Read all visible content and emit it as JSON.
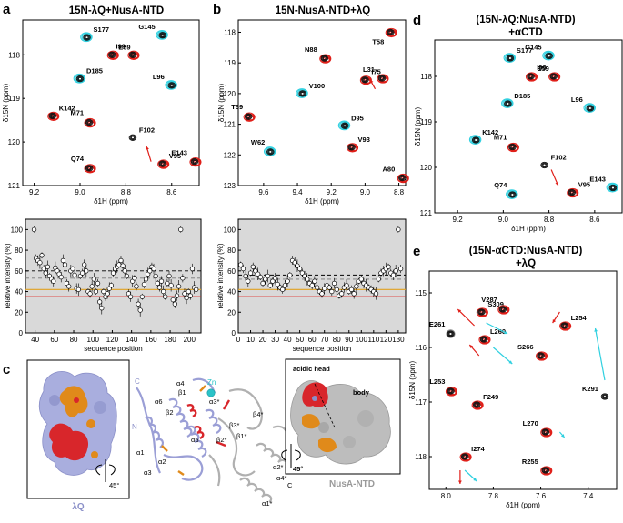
{
  "panels": {
    "a": {
      "letter": "a",
      "title": "15N-λQ+NusA-NTD"
    },
    "b": {
      "letter": "b",
      "title": "15N-NusA-NTD+λQ"
    },
    "c": {
      "letter": "c"
    },
    "d": {
      "letter": "d",
      "title_line1": "(15N-λQ:NusA-NTD)",
      "title_line2": "+αCTD"
    },
    "e": {
      "letter": "e",
      "title_line1": "(15N-αCTD:NusA-NTD)",
      "title_line2": "+λQ"
    }
  },
  "axis_labels": {
    "h_ppm": "δ1H (ppm)",
    "n_ppm": "δ15N (ppm)",
    "rel_intensity": "relative intensity (%)",
    "seq_position": "sequence position"
  },
  "chart_data": [
    {
      "id": "a-spectrum",
      "type": "scatter",
      "title": "15N-λQ+NusA-NTD",
      "xlabel": "δ1H (ppm)",
      "ylabel": "δ15N (ppm)",
      "xlim": [
        9.25,
        8.48
      ],
      "ylim": [
        121.0,
        117.2
      ],
      "xticks": [
        9.2,
        9.0,
        8.8,
        8.6
      ],
      "yticks": [
        118,
        119,
        120,
        121
      ],
      "peaks": [
        {
          "label": "S177",
          "x": 8.97,
          "y": 117.6,
          "style": "cyan"
        },
        {
          "label": "G145",
          "x": 8.64,
          "y": 117.55,
          "style": "cyan"
        },
        {
          "label": "E59",
          "x": 8.86,
          "y": 118.0,
          "style": "red"
        },
        {
          "label": "I99",
          "x": 8.77,
          "y": 118.0,
          "style": "red"
        },
        {
          "label": "D185",
          "x": 9.0,
          "y": 118.55,
          "style": "cyan"
        },
        {
          "label": "L96",
          "x": 8.6,
          "y": 118.7,
          "style": "cyan"
        },
        {
          "label": "K142",
          "x": 9.12,
          "y": 119.4,
          "style": "red"
        },
        {
          "label": "M71",
          "x": 8.96,
          "y": 119.55,
          "style": "red"
        },
        {
          "label": "F102",
          "x": 8.77,
          "y": 119.9,
          "style": "black"
        },
        {
          "label": "Q74",
          "x": 8.96,
          "y": 120.6,
          "style": "red"
        },
        {
          "label": "V95",
          "x": 8.64,
          "y": 120.5,
          "style": "red"
        },
        {
          "label": "E143",
          "x": 8.5,
          "y": 120.45,
          "style": "red"
        }
      ],
      "arrows": [
        {
          "from": [
            8.69,
            120.45
          ],
          "to": [
            8.71,
            120.1
          ]
        }
      ]
    },
    {
      "id": "b-spectrum",
      "type": "scatter",
      "title": "15N-NusA-NTD+λQ",
      "xlabel": "δ1H (ppm)",
      "ylabel": "δ15N (ppm)",
      "xlim": [
        9.75,
        8.76
      ],
      "ylim": [
        123.0,
        117.6
      ],
      "xticks": [
        9.6,
        9.4,
        9.2,
        9.0,
        8.8
      ],
      "yticks": [
        118,
        119,
        120,
        121,
        122,
        123
      ],
      "peaks": [
        {
          "label": "T58",
          "x": 8.85,
          "y": 118.0,
          "style": "red"
        },
        {
          "label": "N88",
          "x": 9.24,
          "y": 118.85,
          "style": "red"
        },
        {
          "label": "I75",
          "x": 9.0,
          "y": 119.55,
          "style": "red"
        },
        {
          "label": "L31",
          "x": 8.9,
          "y": 119.5,
          "style": "red"
        },
        {
          "label": "V100",
          "x": 9.37,
          "y": 120.0,
          "style": "cyan"
        },
        {
          "label": "T69",
          "x": 9.69,
          "y": 120.75,
          "style": "red"
        },
        {
          "label": "D95",
          "x": 9.12,
          "y": 121.05,
          "style": "cyan"
        },
        {
          "label": "W62",
          "x": 9.56,
          "y": 121.9,
          "style": "cyan"
        },
        {
          "label": "V93",
          "x": 9.08,
          "y": 121.75,
          "style": "red"
        },
        {
          "label": "A80",
          "x": 8.78,
          "y": 122.75,
          "style": "red"
        }
      ],
      "arrows": [
        {
          "from": [
            8.94,
            119.85
          ],
          "to": [
            8.97,
            119.55
          ]
        }
      ]
    },
    {
      "id": "a-intensity",
      "type": "scatter",
      "xlabel": "sequence position",
      "ylabel": "relative intensity (%)",
      "xlim": [
        30,
        212
      ],
      "ylim": [
        0,
        110
      ],
      "xticks": [
        40,
        60,
        80,
        100,
        120,
        140,
        160,
        180,
        200
      ],
      "yticks": [
        0,
        20,
        40,
        60,
        80,
        100
      ],
      "reference_lines": {
        "dashed_black": 60,
        "dashed_gray": 53,
        "solid_orange": 42,
        "solid_red": 35
      },
      "x": [
        39,
        41,
        43,
        45,
        47,
        49,
        51,
        53,
        55,
        57,
        59,
        61,
        63,
        65,
        67,
        69,
        71,
        73,
        75,
        77,
        79,
        81,
        83,
        85,
        87,
        89,
        91,
        93,
        95,
        97,
        99,
        101,
        103,
        105,
        107,
        109,
        111,
        113,
        115,
        117,
        119,
        121,
        123,
        125,
        127,
        129,
        131,
        133,
        135,
        137,
        139,
        141,
        143,
        145,
        147,
        149,
        151,
        153,
        155,
        157,
        159,
        161,
        163,
        165,
        167,
        169,
        171,
        173,
        175,
        177,
        179,
        181,
        183,
        185,
        187,
        189,
        191,
        193,
        195,
        197,
        199,
        201,
        203,
        205,
        207
      ],
      "values": [
        100,
        72,
        70,
        68,
        75,
        62,
        58,
        64,
        55,
        52,
        50,
        63,
        60,
        57,
        54,
        70,
        66,
        48,
        45,
        60,
        62,
        56,
        43,
        42,
        55,
        58,
        66,
        60,
        40,
        38,
        45,
        52,
        40,
        48,
        30,
        24,
        40,
        35,
        38,
        43,
        46,
        58,
        62,
        64,
        66,
        70,
        65,
        60,
        55,
        38,
        35,
        50,
        53,
        45,
        28,
        22,
        35,
        47,
        52,
        57,
        60,
        64,
        62,
        55,
        48,
        44,
        50,
        40,
        35,
        48,
        55,
        46,
        32,
        28,
        36,
        45,
        100,
        53,
        38,
        34,
        40,
        36,
        62,
        44,
        42
      ]
    },
    {
      "id": "b-intensity",
      "type": "scatter",
      "xlabel": "sequence position",
      "ylabel": "relative intensity (%)",
      "xlim": [
        0,
        136
      ],
      "ylim": [
        0,
        110
      ],
      "xticks": [
        0,
        10,
        20,
        30,
        40,
        50,
        60,
        70,
        80,
        90,
        100,
        110,
        120,
        130
      ],
      "yticks": [
        0,
        20,
        40,
        60,
        80,
        100
      ],
      "reference_lines": {
        "dashed_black": 56,
        "dashed_gray": 52,
        "solid_orange": 42,
        "solid_red": 35
      },
      "x": [
        2,
        4,
        6,
        8,
        10,
        12,
        14,
        16,
        18,
        20,
        22,
        24,
        26,
        28,
        30,
        32,
        34,
        36,
        38,
        40,
        42,
        44,
        46,
        48,
        50,
        52,
        54,
        56,
        58,
        60,
        62,
        64,
        66,
        68,
        70,
        72,
        74,
        76,
        78,
        80,
        82,
        84,
        86,
        88,
        90,
        92,
        94,
        96,
        98,
        100,
        102,
        104,
        106,
        108,
        110,
        112,
        114,
        116,
        118,
        120,
        122,
        124,
        126,
        128,
        130,
        132
      ],
      "values": [
        66,
        62,
        55,
        50,
        58,
        64,
        60,
        57,
        54,
        48,
        52,
        55,
        46,
        50,
        53,
        47,
        44,
        42,
        46,
        50,
        56,
        70,
        68,
        65,
        62,
        58,
        55,
        52,
        48,
        46,
        50,
        44,
        40,
        38,
        43,
        46,
        44,
        40,
        48,
        42,
        36,
        38,
        44,
        46,
        40,
        42,
        38,
        45,
        50,
        52,
        48,
        46,
        44,
        42,
        40,
        38,
        52,
        58,
        60,
        62,
        64,
        58,
        56,
        60,
        100,
        62
      ]
    },
    {
      "id": "d-spectrum",
      "type": "scatter",
      "title": "(15N-λQ:NusA-NTD) +αCTD",
      "xlabel": "δ1H (ppm)",
      "ylabel": "δ15N (ppm)",
      "xlim": [
        9.3,
        8.48
      ],
      "ylim": [
        121.0,
        117.2
      ],
      "xticks": [
        9.2,
        9.0,
        8.8,
        8.6
      ],
      "yticks": [
        118,
        119,
        120,
        121
      ],
      "peaks": [
        {
          "label": "S177",
          "x": 8.97,
          "y": 117.6,
          "style": "cyan"
        },
        {
          "label": "G145",
          "x": 8.8,
          "y": 117.55,
          "style": "cyan"
        },
        {
          "label": "E59",
          "x": 8.88,
          "y": 118.0,
          "style": "red"
        },
        {
          "label": "I99",
          "x": 8.78,
          "y": 118.0,
          "style": "red"
        },
        {
          "label": "D185",
          "x": 8.98,
          "y": 118.6,
          "style": "cyan"
        },
        {
          "label": "L96",
          "x": 8.62,
          "y": 118.7,
          "style": "cyan"
        },
        {
          "label": "K142",
          "x": 9.12,
          "y": 119.4,
          "style": "cyan"
        },
        {
          "label": "M71",
          "x": 8.96,
          "y": 119.55,
          "style": "red"
        },
        {
          "label": "F102",
          "x": 8.82,
          "y": 119.95,
          "style": "black"
        },
        {
          "label": "Q74",
          "x": 8.96,
          "y": 120.6,
          "style": "cyan"
        },
        {
          "label": "V95",
          "x": 8.7,
          "y": 120.55,
          "style": "red"
        },
        {
          "label": "E143",
          "x": 8.52,
          "y": 120.45,
          "style": "cyan"
        }
      ],
      "arrows": [
        {
          "from": [
            8.79,
            120.05
          ],
          "to": [
            8.76,
            120.4
          ]
        }
      ]
    },
    {
      "id": "e-spectrum",
      "type": "scatter",
      "title": "(15N-αCTD:NusA-NTD) +λQ",
      "xlabel": "δ1H (ppm)",
      "ylabel": "δ15N (ppm)",
      "xlim": [
        8.07,
        7.28
      ],
      "ylim": [
        118.6,
        114.6
      ],
      "xticks": [
        8.0,
        7.8,
        7.6,
        7.4
      ],
      "yticks": [
        115,
        116,
        117,
        118
      ],
      "peaks": [
        {
          "label": "S309",
          "x": 7.85,
          "y": 115.35,
          "style": "red"
        },
        {
          "label": "V287",
          "x": 7.76,
          "y": 115.3,
          "style": "red"
        },
        {
          "label": "L254",
          "x": 7.5,
          "y": 115.6,
          "style": "red"
        },
        {
          "label": "E261",
          "x": 7.98,
          "y": 115.75,
          "style": "gray"
        },
        {
          "label": "L260",
          "x": 7.84,
          "y": 115.85,
          "style": "red"
        },
        {
          "label": "S266",
          "x": 7.6,
          "y": 116.15,
          "style": "red"
        },
        {
          "label": "K291",
          "x": 7.33,
          "y": 116.9,
          "style": "black"
        },
        {
          "label": "L253",
          "x": 7.98,
          "y": 116.8,
          "style": "red"
        },
        {
          "label": "F249",
          "x": 7.87,
          "y": 117.05,
          "style": "red"
        },
        {
          "label": "L270",
          "x": 7.58,
          "y": 117.55,
          "style": "red"
        },
        {
          "label": "I274",
          "x": 7.92,
          "y": 118.0,
          "style": "red"
        },
        {
          "label": "R255",
          "x": 7.58,
          "y": 118.25,
          "style": "red"
        }
      ],
      "arrows": [
        {
          "from": [
            7.88,
            115.6
          ],
          "to": [
            7.95,
            115.3
          ],
          "color": "#e0201a"
        },
        {
          "from": [
            7.83,
            115.55
          ],
          "to": [
            7.74,
            115.75
          ],
          "color": "#30d0e0"
        },
        {
          "from": [
            7.52,
            115.35
          ],
          "to": [
            7.55,
            115.55
          ],
          "color": "#e0201a"
        },
        {
          "from": [
            7.86,
            116.15
          ],
          "to": [
            7.9,
            115.95
          ],
          "color": "#e0201a"
        },
        {
          "from": [
            7.8,
            116.0
          ],
          "to": [
            7.72,
            116.3
          ],
          "color": "#30d0e0"
        },
        {
          "from": [
            7.33,
            116.6
          ],
          "to": [
            7.37,
            115.65
          ],
          "color": "#30d0e0"
        },
        {
          "from": [
            7.52,
            117.55
          ],
          "to": [
            7.5,
            117.65
          ],
          "color": "#30d0e0"
        },
        {
          "from": [
            7.94,
            118.25
          ],
          "to": [
            7.94,
            118.5
          ],
          "color": "#e0201a"
        },
        {
          "from": [
            7.92,
            118.25
          ],
          "to": [
            7.87,
            118.45
          ],
          "color": "#30d0e0"
        }
      ]
    }
  ],
  "structure": {
    "lambdaQ_label": "λQ",
    "nusa_label": "NusA-NTD",
    "rotation_label": "45°",
    "acidic_head_label": "acidic head",
    "body_label": "body",
    "zn_label": "Zn",
    "n_label": "N",
    "c_label": "C",
    "c_star_label": "C",
    "sec_struct_q": [
      "α4",
      "β1",
      "α6",
      "β2",
      "α1",
      "α5",
      "α2",
      "α3"
    ],
    "sec_struct_nusa": [
      "α3*",
      "β4*",
      "β3*",
      "β2*",
      "β1*",
      "α2*",
      "α4*",
      "α1*"
    ]
  },
  "colors": {
    "red": "#e0201a",
    "cyan": "#30d0e0",
    "black": "#111111",
    "orange": "#e08a1a",
    "lavender": "#9b9fd6",
    "gray_protein": "#b8b8b8",
    "panel_bg": "#d9d9d9"
  }
}
